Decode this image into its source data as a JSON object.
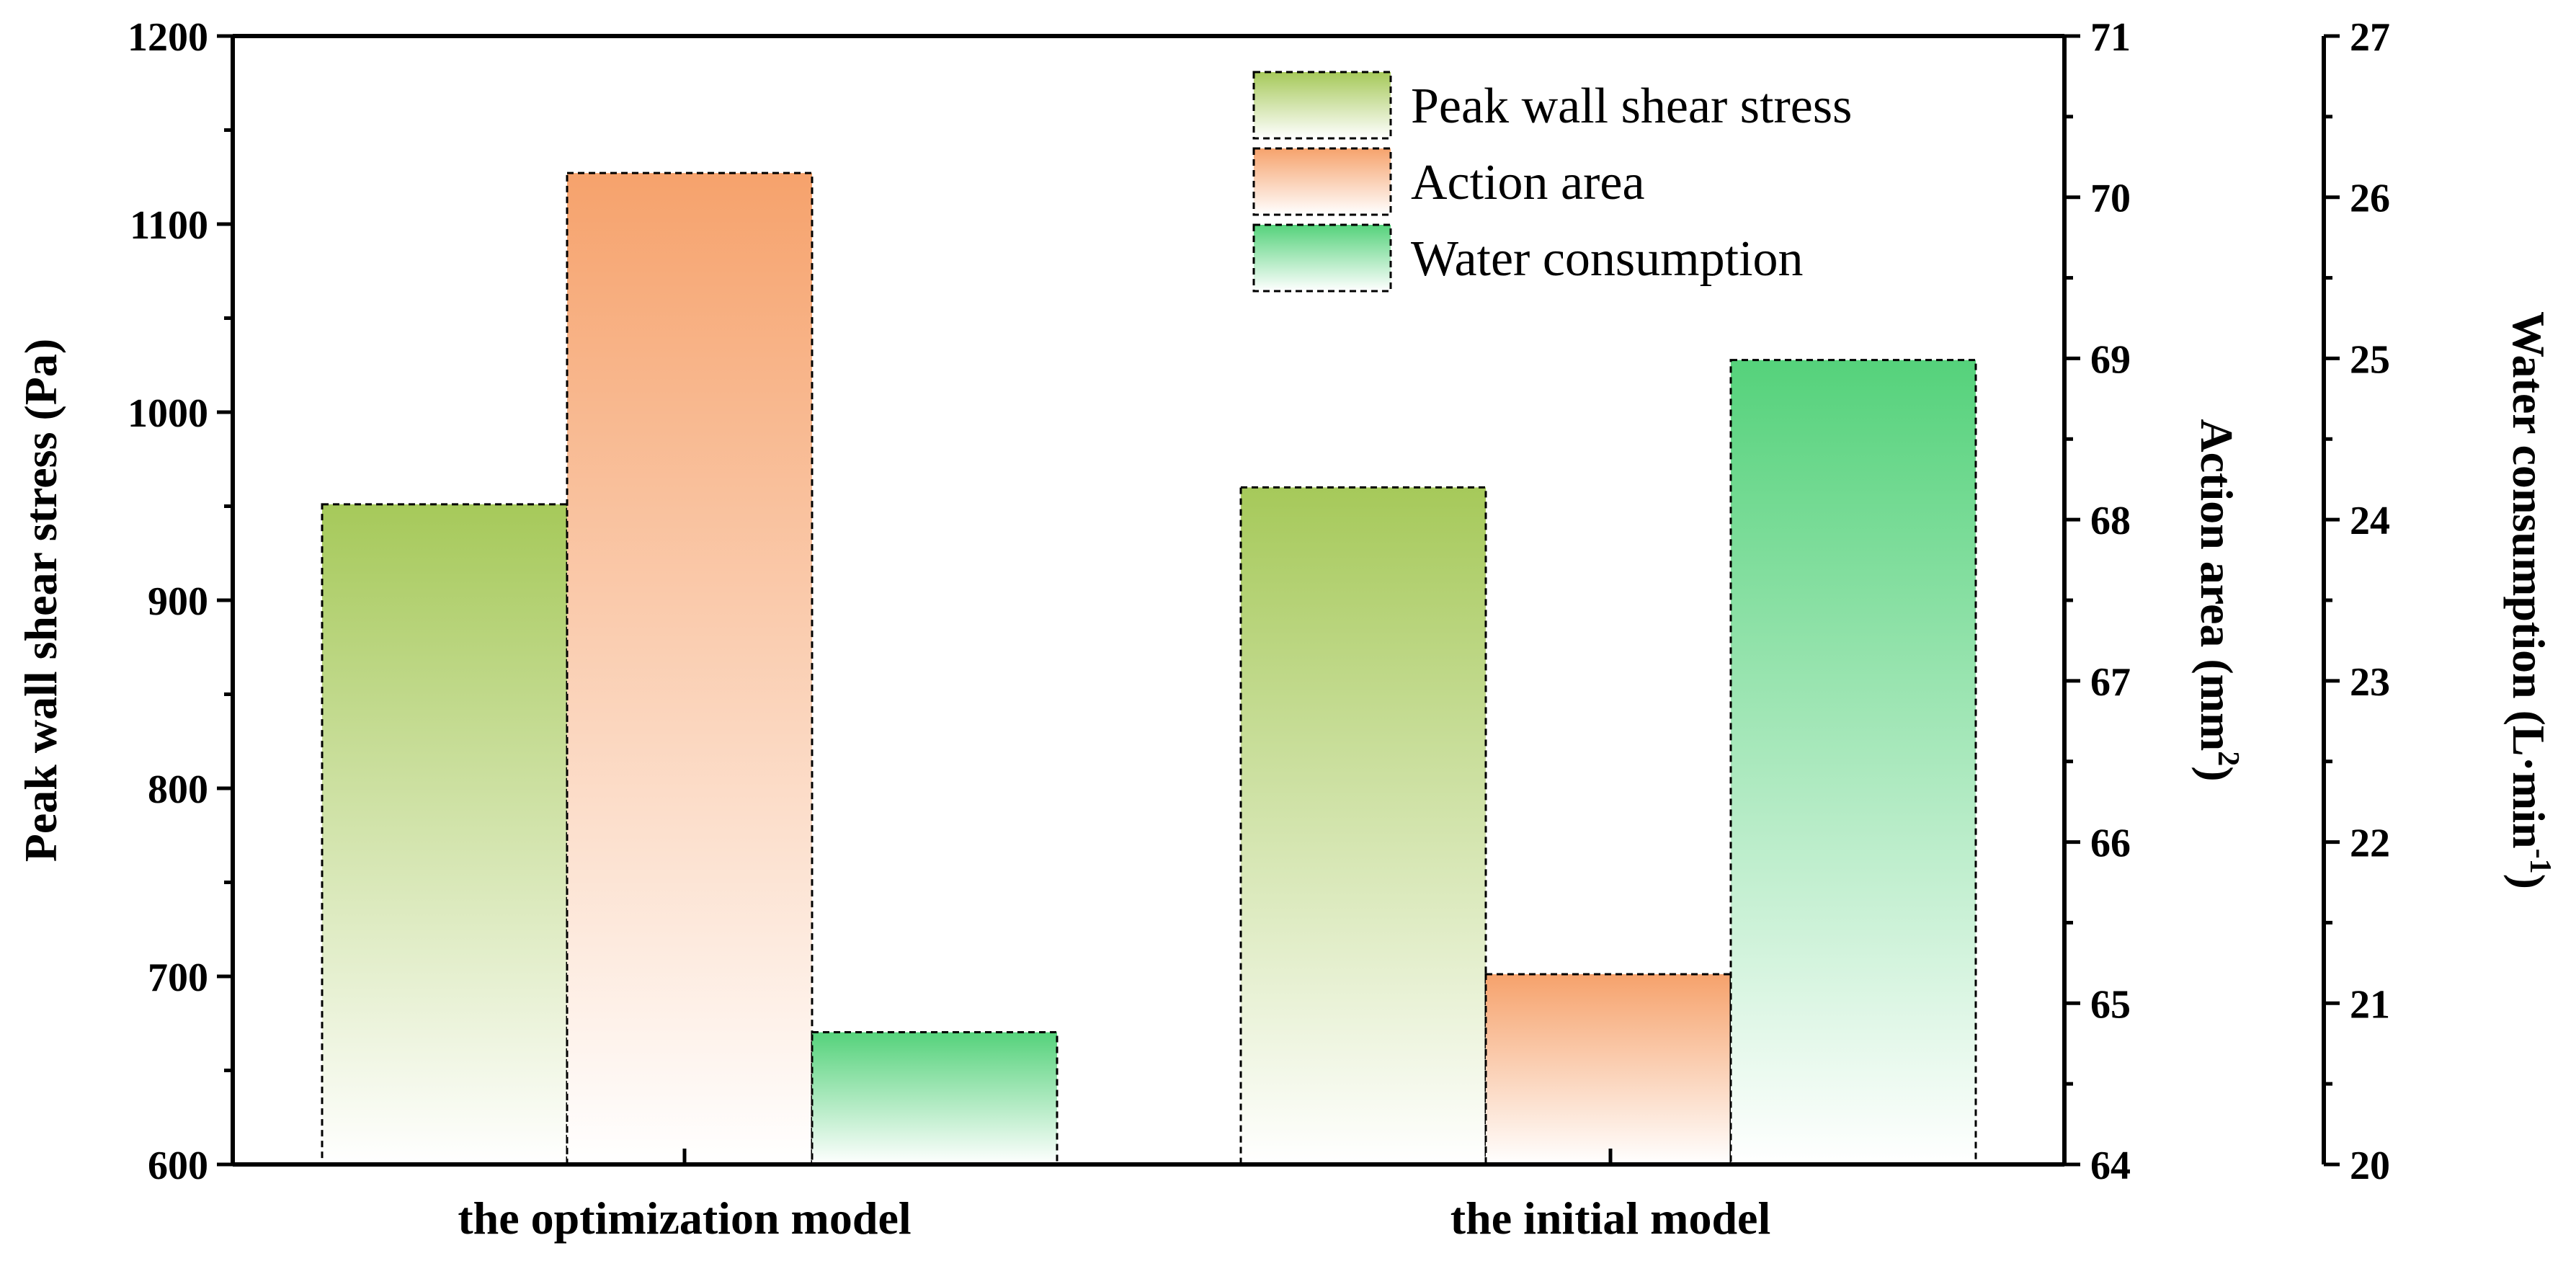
{
  "chart_data": {
    "type": "bar",
    "categories": [
      "the optimization model",
      "the initial model"
    ],
    "series": [
      {
        "name": "Peak wall shear stress",
        "axis": "left",
        "values": [
          951,
          960
        ],
        "color": "#a6c95a"
      },
      {
        "name": "Action area",
        "axis": "right1",
        "values": [
          70.15,
          65.18
        ],
        "color": "#f6a26c"
      },
      {
        "name": "Water consumption",
        "axis": "right2",
        "values": [
          20.82,
          24.99
        ],
        "color": "#55d27b"
      }
    ],
    "axes": {
      "left": {
        "label": "Peak wall shear stress (Pa)",
        "ylim": [
          600,
          1200
        ],
        "ticks": [
          "600",
          "700",
          "800",
          "900",
          "1000",
          "1100",
          "1200"
        ]
      },
      "right1": {
        "label_main": "Action area (mm",
        "label_sup": "2",
        "label_end": ")",
        "ylim": [
          64,
          71
        ],
        "ticks": [
          "64",
          "65",
          "66",
          "67",
          "68",
          "69",
          "70",
          "71"
        ]
      },
      "right2": {
        "label_main": "Water consumption (L·min",
        "label_sup": "-1",
        "label_end": ")",
        "ylim": [
          20,
          27
        ],
        "ticks": [
          "20",
          "21",
          "22",
          "23",
          "24",
          "25",
          "26",
          "27"
        ]
      }
    },
    "legend_position": "top-right",
    "grid": false
  }
}
